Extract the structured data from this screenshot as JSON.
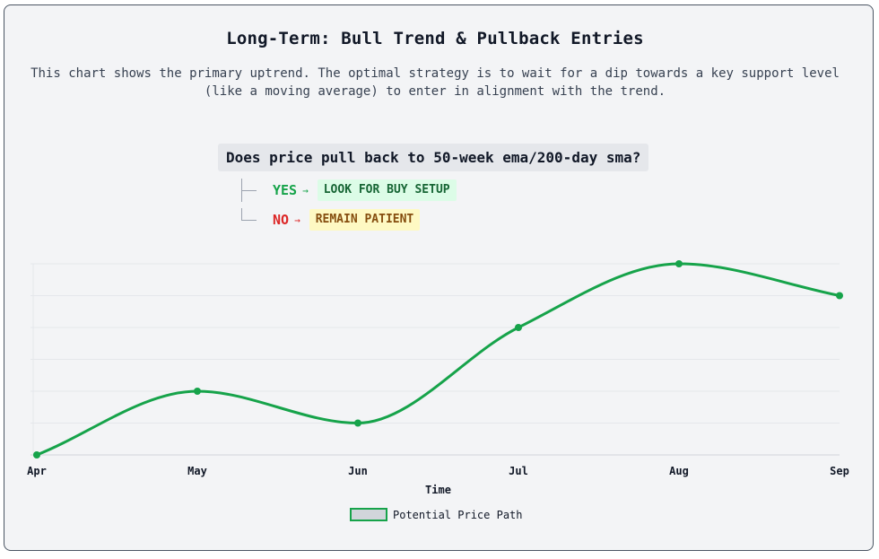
{
  "title": "Long-Term: Bull Trend & Pullback Entries",
  "description": "This chart shows the primary uptrend. The optimal strategy is to wait for a dip towards a key support level (like a moving average) to enter in alignment with the trend.",
  "decision": {
    "question": "Does price pull back to 50-week ema/200-day sma?",
    "yes": {
      "answer": "YES",
      "arrow": "→",
      "action": "LOOK FOR BUY SETUP"
    },
    "no": {
      "answer": "NO",
      "arrow": "→",
      "action": "REMAIN PATIENT"
    }
  },
  "colors": {
    "line": "#16a34a",
    "yes": "#16a34a",
    "no": "#dc2626",
    "grid": "#e5e7eb"
  },
  "chart_data": {
    "type": "line",
    "categories": [
      "Apr",
      "May",
      "Jun",
      "Jul",
      "Aug",
      "Sep"
    ],
    "series": [
      {
        "name": "Potential Price Path",
        "values": [
          0,
          2,
          1,
          4,
          6,
          5
        ]
      }
    ],
    "xlabel": "Time",
    "ylabel": "",
    "ylim": [
      0,
      6
    ],
    "grid": true,
    "smooth": true,
    "legend": "bottom"
  }
}
